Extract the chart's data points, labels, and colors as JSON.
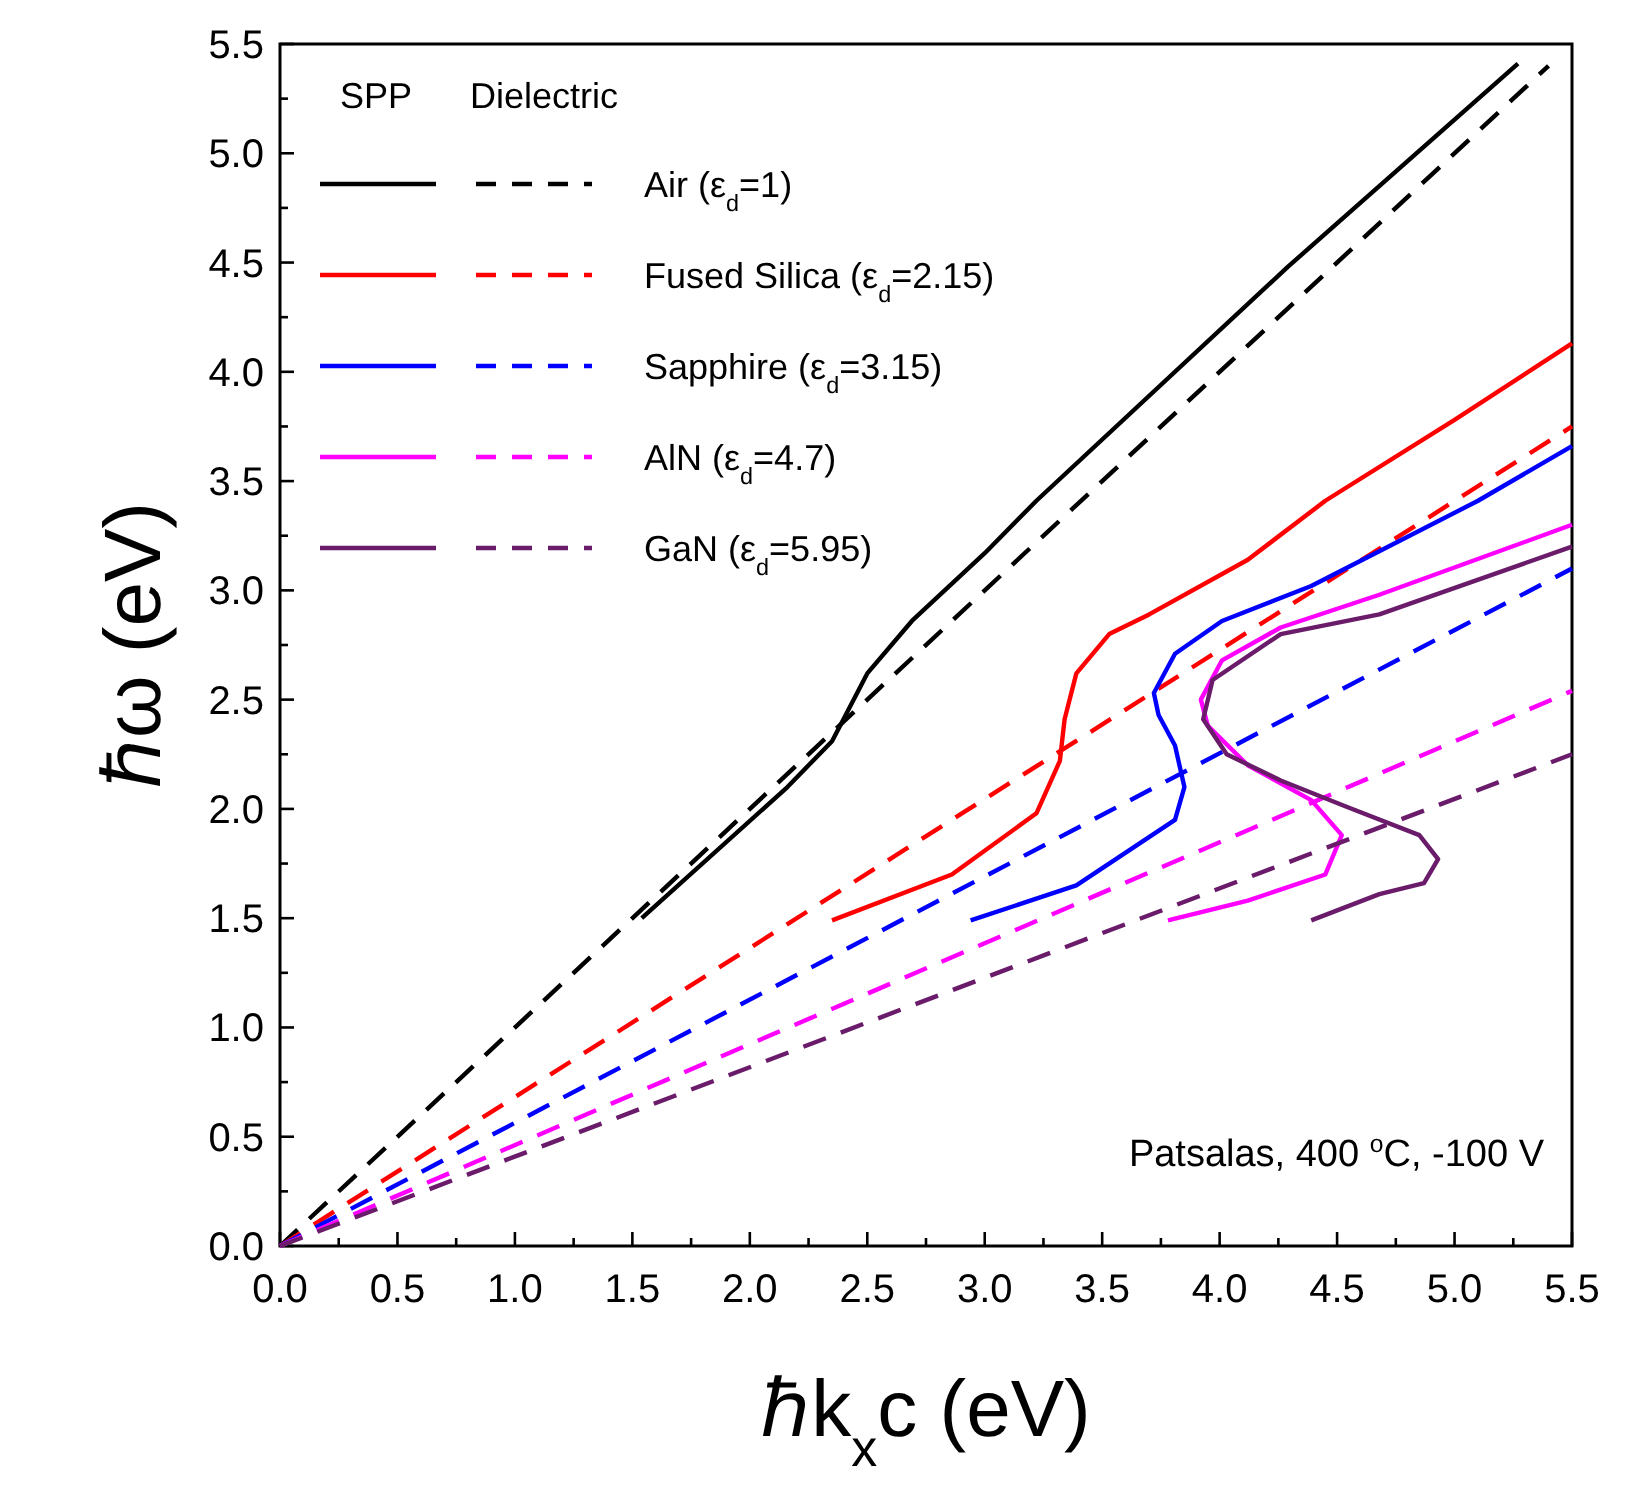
{
  "chart_data": {
    "type": "line",
    "xlabel": "ℏk$_{x}$c (eV)",
    "ylabel": "ℏω (eV)",
    "xlim": [
      0,
      5.5
    ],
    "ylim": [
      0,
      5.5
    ],
    "xticks": [
      {
        "value": 0,
        "label": "0.0"
      },
      {
        "value": 0.25,
        "label": null
      },
      {
        "value": 0.5,
        "label": "0.5"
      },
      {
        "value": 0.75,
        "label": null
      },
      {
        "value": 1,
        "label": "1.0"
      },
      {
        "value": 1.25,
        "label": null
      },
      {
        "value": 1.5,
        "label": "1.5"
      },
      {
        "value": 1.75,
        "label": null
      },
      {
        "value": 2,
        "label": "2.0"
      },
      {
        "value": 2.25,
        "label": null
      },
      {
        "value": 2.5,
        "label": "2.5"
      },
      {
        "value": 2.75,
        "label": null
      },
      {
        "value": 3,
        "label": "3.0"
      },
      {
        "value": 3.25,
        "label": null
      },
      {
        "value": 3.5,
        "label": "3.5"
      },
      {
        "value": 3.75,
        "label": null
      },
      {
        "value": 4,
        "label": "4.0"
      },
      {
        "value": 4.25,
        "label": null
      },
      {
        "value": 4.5,
        "label": "4.5"
      },
      {
        "value": 4.75,
        "label": null
      },
      {
        "value": 5,
        "label": "5.0"
      },
      {
        "value": 5.25,
        "label": null
      },
      {
        "value": 5.5,
        "label": "5.5"
      }
    ],
    "yticks": [
      {
        "value": 0,
        "label": "0.0"
      },
      {
        "value": 0.25,
        "label": null
      },
      {
        "value": 0.5,
        "label": "0.5"
      },
      {
        "value": 0.75,
        "label": null
      },
      {
        "value": 1,
        "label": "1.0"
      },
      {
        "value": 1.25,
        "label": null
      },
      {
        "value": 1.5,
        "label": "1.5"
      },
      {
        "value": 1.75,
        "label": null
      },
      {
        "value": 2,
        "label": "2.0"
      },
      {
        "value": 2.25,
        "label": null
      },
      {
        "value": 2.5,
        "label": "2.5"
      },
      {
        "value": 2.75,
        "label": null
      },
      {
        "value": 3,
        "label": "3.0"
      },
      {
        "value": 3.25,
        "label": null
      },
      {
        "value": 3.5,
        "label": "3.5"
      },
      {
        "value": 3.75,
        "label": null
      },
      {
        "value": 4,
        "label": "4.0"
      },
      {
        "value": 4.25,
        "label": null
      },
      {
        "value": 4.5,
        "label": "4.5"
      },
      {
        "value": 4.75,
        "label": null
      },
      {
        "value": 5,
        "label": "5.0"
      },
      {
        "value": 5.25,
        "label": null
      },
      {
        "value": 5.5,
        "label": "5.5"
      }
    ],
    "grid": false,
    "legend": "top left",
    "annotations": [
      "SPP",
      "Dielectric",
      "Patsalas, 400 $^{o}$C, -100 V"
    ],
    "series": [
      {
        "color": "#000000",
        "line_style": "solid",
        "x": [
          1.54,
          2.16,
          2.35,
          2.5,
          2.69,
          3.0,
          3.22,
          4.29,
          5.27
        ],
        "values": [
          1.5,
          2.1,
          2.31,
          2.62,
          2.86,
          3.17,
          3.41,
          4.48,
          5.41
        ]
      },
      {
        "name": "Air (ε$_{d}$=1)",
        "color": "#000000",
        "line_style": "dashed",
        "x": [
          0,
          5.4
        ],
        "values": [
          0,
          5.4
        ]
      },
      {
        "color": "#ff0000",
        "line_style": "solid",
        "x": [
          2.35,
          2.86,
          3.22,
          3.32,
          3.34,
          3.39,
          3.53,
          3.7,
          4.12,
          4.45,
          5.0,
          5.5
        ],
        "values": [
          1.49,
          1.7,
          1.98,
          2.22,
          2.41,
          2.62,
          2.8,
          2.89,
          3.14,
          3.41,
          3.78,
          4.13
        ]
      },
      {
        "name": "Fused Silica (ε$_{d}$=2.15)",
        "color": "#ff0000",
        "line_style": "dashed",
        "x": [
          0,
          5.5
        ],
        "values": [
          0,
          3.75
        ]
      },
      {
        "color": "#0000ff",
        "line_style": "solid",
        "x": [
          2.94,
          3.39,
          3.81,
          3.85,
          3.81,
          3.74,
          3.72,
          3.81,
          4.01,
          4.39,
          5.1,
          5.5
        ],
        "values": [
          1.49,
          1.65,
          1.95,
          2.1,
          2.29,
          2.43,
          2.53,
          2.71,
          2.86,
          3.02,
          3.41,
          3.66
        ]
      },
      {
        "name": "Sapphire (ε$_{d}$=3.15)",
        "color": "#0000ff",
        "line_style": "dashed",
        "x": [
          0,
          5.5
        ],
        "values": [
          0,
          3.1
        ]
      },
      {
        "color": "#ff00ff",
        "line_style": "solid",
        "x": [
          3.78,
          4.12,
          4.45,
          4.52,
          4.39,
          4.12,
          3.95,
          3.92,
          4.01,
          4.26,
          4.68,
          5.5
        ],
        "values": [
          1.49,
          1.58,
          1.7,
          1.88,
          2.04,
          2.2,
          2.38,
          2.5,
          2.68,
          2.83,
          2.98,
          3.3
        ]
      },
      {
        "name": "AlN (ε$_{d}$=4.7)",
        "color": "#ff00ff",
        "line_style": "dashed",
        "x": [
          0,
          5.5
        ],
        "values": [
          0,
          2.54
        ]
      },
      {
        "color": "#6a1b6a",
        "line_style": "solid",
        "x": [
          4.39,
          4.68,
          4.87,
          4.93,
          4.85,
          4.54,
          4.26,
          4.03,
          3.93,
          3.97,
          4.26,
          4.68,
          5.5
        ],
        "values": [
          1.49,
          1.61,
          1.66,
          1.77,
          1.88,
          2.01,
          2.13,
          2.25,
          2.41,
          2.59,
          2.8,
          2.89,
          3.2
        ]
      },
      {
        "name": "GaN (ε$_{d}$=5.95)",
        "color": "#6a1b6a",
        "line_style": "dashed",
        "x": [
          0,
          5.5
        ],
        "values": [
          0,
          2.25
        ]
      }
    ]
  }
}
